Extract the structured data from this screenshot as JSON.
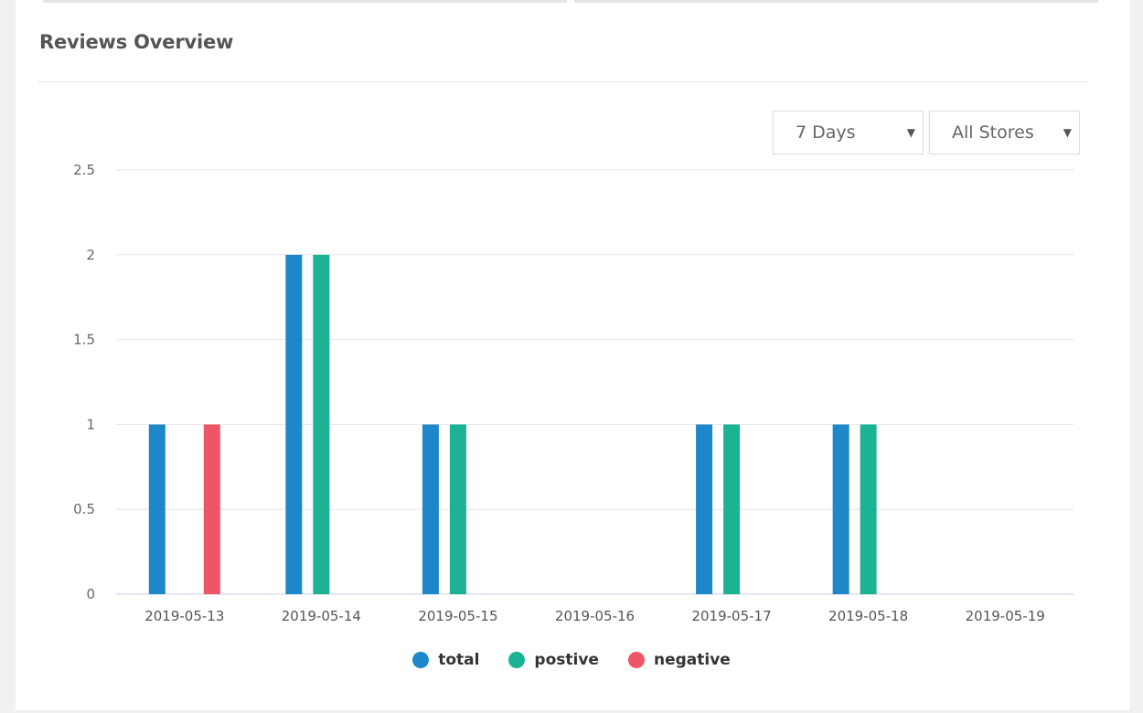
{
  "page": {
    "title": "Reviews Overview"
  },
  "filters": {
    "period": "7 Days",
    "store": "All Stores"
  },
  "colors": {
    "total": "#1e87c9",
    "postive": "#1bb394",
    "negative": "#ee5566"
  },
  "chart_data": {
    "type": "bar",
    "categories": [
      "2019-05-13",
      "2019-05-14",
      "2019-05-15",
      "2019-05-16",
      "2019-05-17",
      "2019-05-18",
      "2019-05-19"
    ],
    "series": [
      {
        "name": "total",
        "values": [
          1,
          2,
          1,
          0,
          1,
          1,
          0
        ]
      },
      {
        "name": "postive",
        "values": [
          0,
          2,
          1,
          0,
          1,
          1,
          0
        ]
      },
      {
        "name": "negative",
        "values": [
          1,
          0,
          0,
          0,
          0,
          0,
          0
        ]
      }
    ],
    "yticks": [
      "0",
      "0.5",
      "1",
      "1.5",
      "2",
      "2.5"
    ],
    "ylim": [
      0,
      2.5
    ],
    "grid": true,
    "legend": "bottom-center"
  }
}
